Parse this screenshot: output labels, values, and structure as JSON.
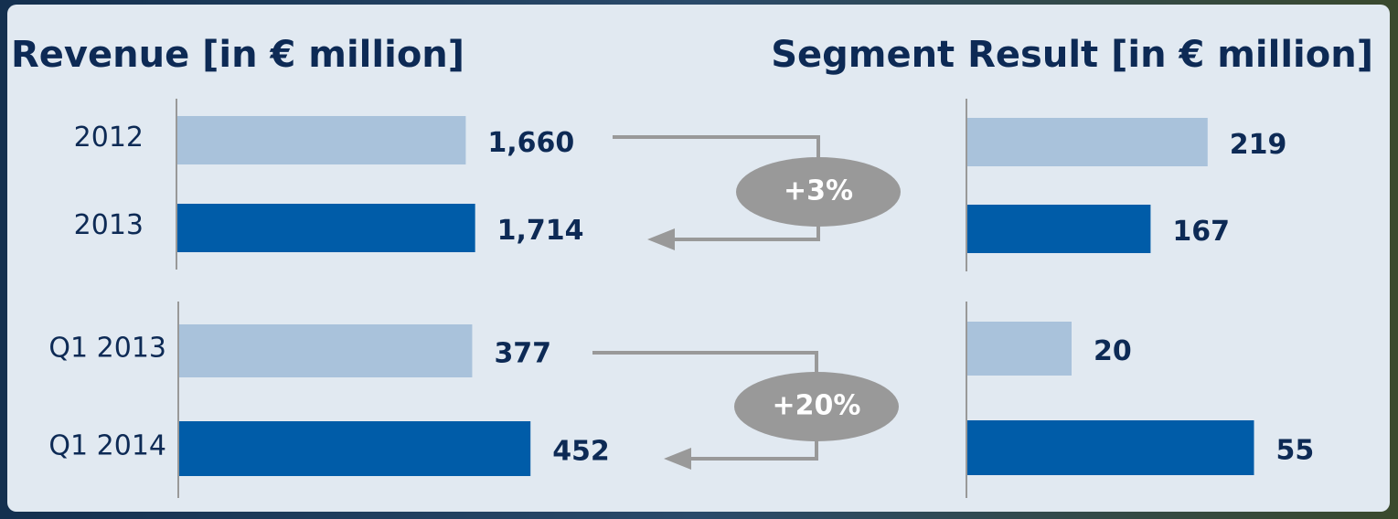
{
  "chart_data": [
    {
      "type": "bar",
      "orientation": "horizontal",
      "title": "Revenue [in € million]",
      "categories": [
        "2012",
        "2013"
      ],
      "values": [
        1660,
        1714
      ],
      "value_labels": [
        "1,660",
        "1,714"
      ],
      "colors": [
        "#a9c2db",
        "#005ca8"
      ],
      "annotation": "+3%"
    },
    {
      "type": "bar",
      "orientation": "horizontal",
      "categories": [
        "Q1 2013",
        "Q1 2014"
      ],
      "values": [
        377,
        452
      ],
      "value_labels": [
        "377",
        "452"
      ],
      "colors": [
        "#a9c2db",
        "#005ca8"
      ],
      "annotation": "+20%"
    },
    {
      "type": "bar",
      "orientation": "horizontal",
      "title": "Segment Result [in € million]",
      "values": [
        219,
        167
      ],
      "colors": [
        "#a9c2db",
        "#005ca8"
      ]
    },
    {
      "type": "bar",
      "orientation": "horizontal",
      "values": [
        20,
        55
      ],
      "colors": [
        "#a9c2db",
        "#005ca8"
      ]
    }
  ]
}
